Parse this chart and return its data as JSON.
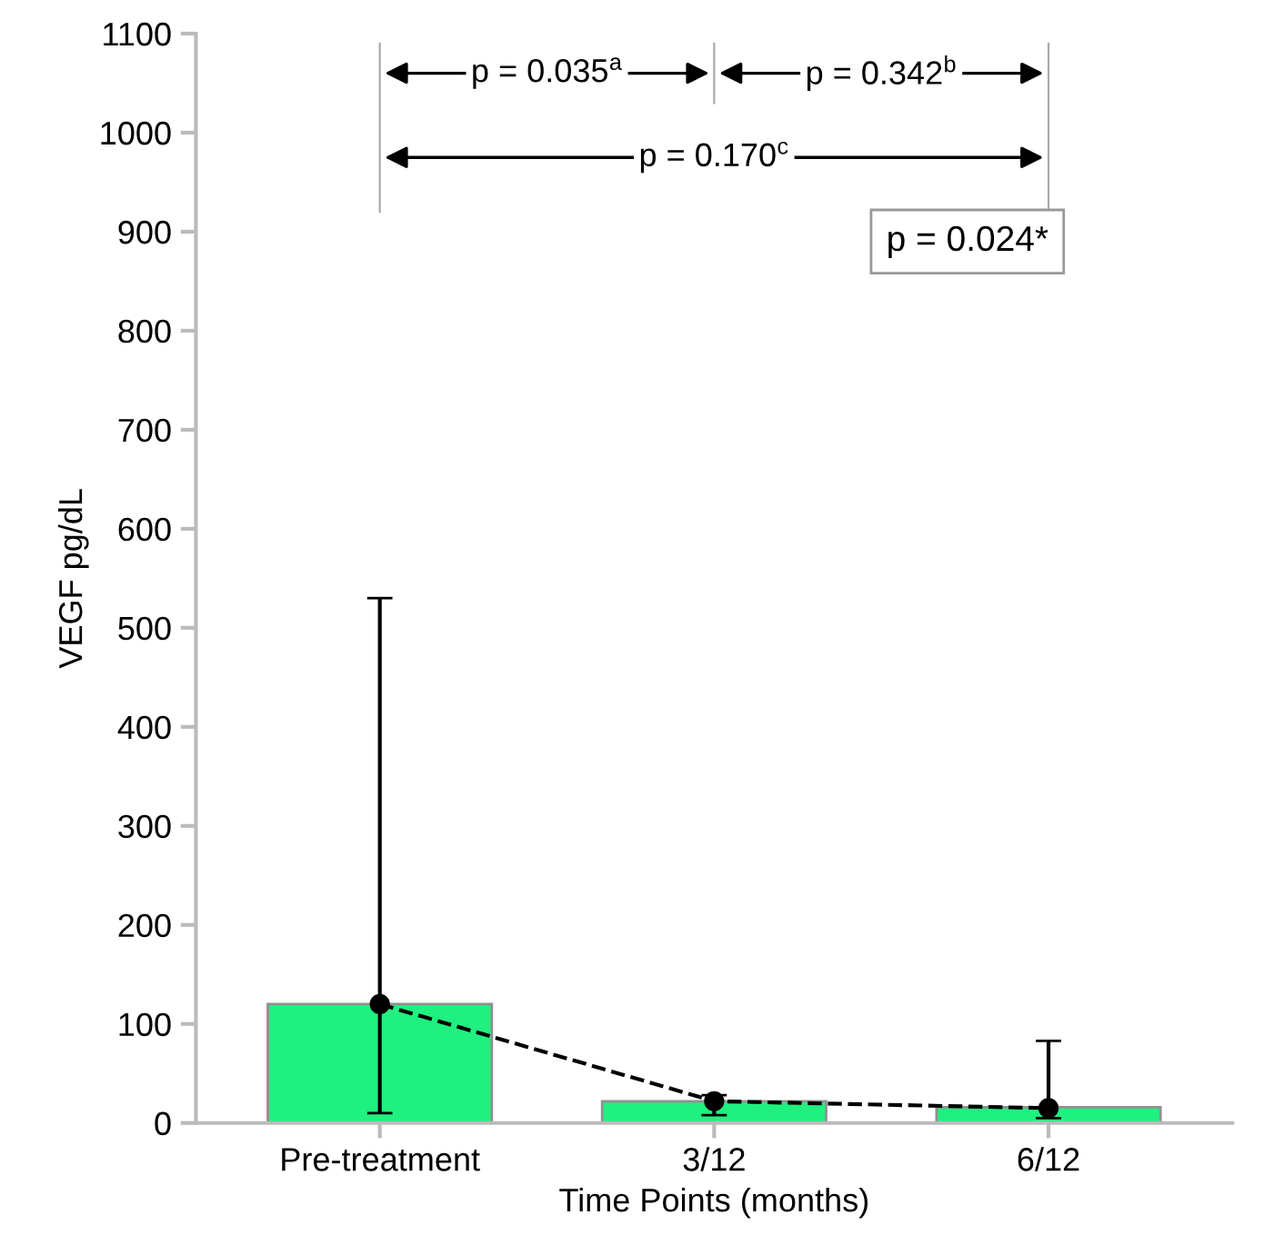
{
  "chart_data": {
    "type": "bar",
    "xlabel": "Time Points (months)",
    "ylabel": "VEGF pg/dL",
    "categories": [
      "Pre-treatment",
      "3/12",
      "6/12"
    ],
    "series": [
      {
        "color": "#20f080",
        "values": [
          120,
          22,
          16
        ],
        "errors": [
          [
            10,
            530
          ],
          [
            8,
            28
          ],
          [
            5,
            83
          ]
        ]
      },
      {
        "type": "line",
        "color": "#000000",
        "values": [
          120,
          22,
          15
        ],
        "marker": "circle",
        "line_style": "dashed"
      }
    ],
    "ylim": [
      0,
      1100
    ],
    "yticks": [
      0,
      100,
      200,
      300,
      400,
      500,
      600,
      700,
      800,
      900,
      1000,
      1100
    ],
    "grid": false,
    "annotations": [
      "p = 0.035$^{a}$",
      "p = 0.342$^{b}$",
      "p = 0.170$^{c}$",
      "p = 0.024*"
    ]
  }
}
